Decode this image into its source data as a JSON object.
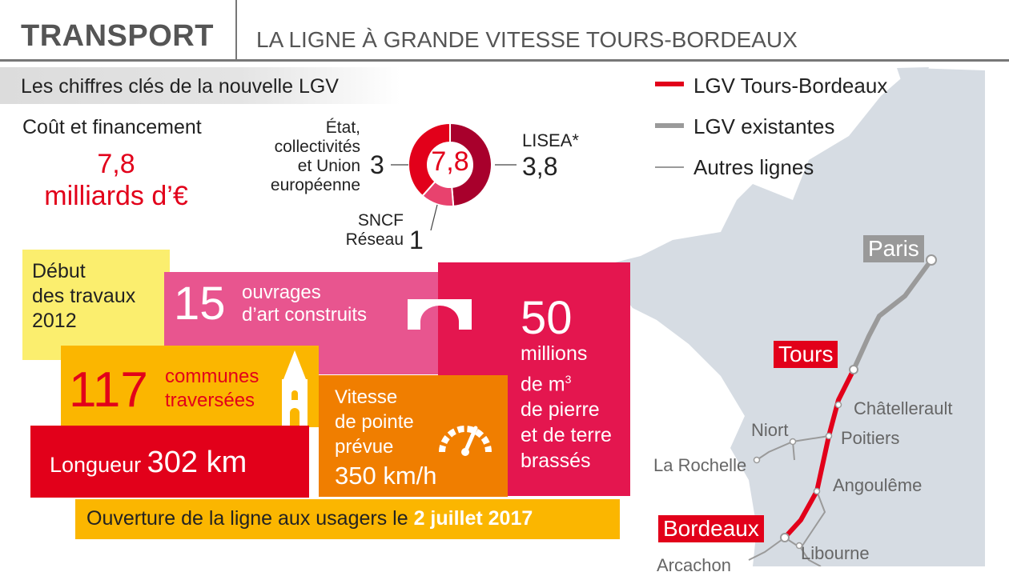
{
  "header": {
    "title": "TRANSPORT",
    "subtitle": "LA LIGNE À GRANDE VITESSE TOURS-BORDEAUX"
  },
  "section_title": "Les chiffres clés de la nouvelle LGV",
  "cost": {
    "label": "Coût et financement",
    "value_line1": "7,8",
    "value_line2": "milliards d’€",
    "donut_total": "7,8",
    "segments": [
      {
        "label_lines": [
          "État,",
          "collectivités",
          "et Union",
          "européenne"
        ],
        "value": "3",
        "amount": 3.0,
        "color": "#e2001a"
      },
      {
        "label_lines": [
          "LISEA*"
        ],
        "value": "3,8",
        "amount": 3.8,
        "color": "#a8002c"
      },
      {
        "label_lines": [
          "SNCF",
          "Réseau"
        ],
        "value": "1",
        "amount": 1.0,
        "color": "#e8426e"
      }
    ]
  },
  "legend": [
    {
      "label": "LGV Tours-Bordeaux",
      "color": "#e2001a"
    },
    {
      "label": "LGV existantes",
      "color": "#9a9a9a"
    },
    {
      "label": "Autres lignes",
      "color": "#9a9a9a"
    }
  ],
  "facts": {
    "debut": {
      "line1": "Début",
      "line2": "des travaux",
      "year": "2012",
      "color": "#fbee6e"
    },
    "ouvrages": {
      "number": "15",
      "line1": "ouvrages",
      "line2": "d’art construits",
      "color": "#e8558f"
    },
    "volume": {
      "number": "50",
      "line1": "millions",
      "line2": "de m",
      "sup": "3",
      "line3": "de pierre",
      "line4": "et de terre",
      "line5": "brassés",
      "color": "#e4164f"
    },
    "communes": {
      "number": "117",
      "line1": "communes",
      "line2": "traversées",
      "color": "#fbb600"
    },
    "vitesse": {
      "line1": "Vitesse",
      "line2": "de pointe",
      "line3": "prévue",
      "value": "350 km/h",
      "color": "#f07e00"
    },
    "longueur": {
      "label": "Longueur",
      "value": "302 km",
      "color": "#e2001a"
    },
    "ouverture": {
      "text": "Ouverture de la ligne aux usagers le",
      "date": "2 juillet 2017",
      "color": "#fbb600"
    }
  },
  "map": {
    "cities_major": [
      "Paris",
      "Tours",
      "Bordeaux"
    ],
    "cities_minor": [
      "Châtellerault",
      "Niort",
      "Poitiers",
      "La Rochelle",
      "Angoulême",
      "Libourne",
      "Arcachon"
    ]
  }
}
